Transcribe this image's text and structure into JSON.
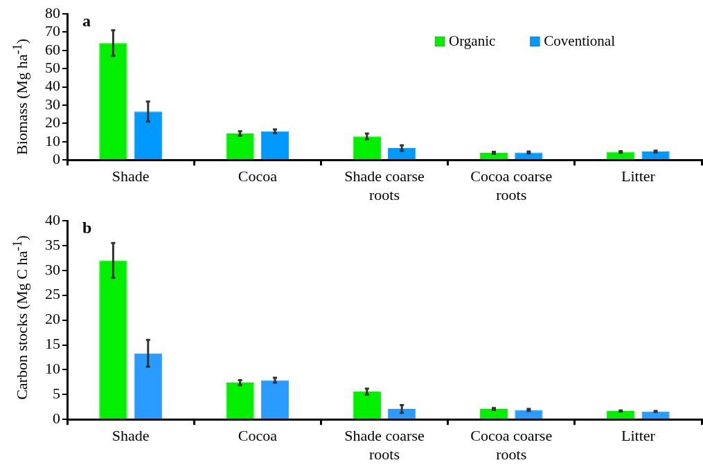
{
  "chart_data": [
    {
      "type": "bar",
      "title": "a",
      "ylabel": "Biomass (Mg ha$^{-1}$)",
      "categories": [
        "Shade",
        "Cocoa",
        "Shade coarse roots",
        "Cocoa coarse roots",
        "Litter"
      ],
      "series": [
        {
          "name": "Organic",
          "color": "#00f000",
          "values": [
            64,
            14.5,
            12.9,
            3.9,
            4.4
          ],
          "errors": [
            7,
            1.2,
            1.6,
            0.5,
            0.4
          ]
        },
        {
          "name": "Coventional",
          "color": "#0099ff",
          "values": [
            26.5,
            15.7,
            6.5,
            4.1,
            4.6
          ],
          "errors": [
            5.5,
            1,
            1.5,
            0.5,
            0.5
          ]
        }
      ],
      "ylim": [
        0,
        80
      ],
      "yticks": [
        0,
        10,
        20,
        30,
        40,
        50,
        60,
        70,
        80
      ],
      "grid": false,
      "legend": "top right"
    },
    {
      "type": "bar",
      "title": "b",
      "ylabel": "Carbon stocks (Mg C ha$^{-1}$)",
      "categories": [
        "Shade",
        "Cocoa",
        "Shade coarse roots",
        "Cocoa coarse roots",
        "Litter"
      ],
      "series": [
        {
          "color": "#00f000",
          "values": [
            32,
            7.4,
            5.6,
            2.1,
            1.7
          ],
          "errors": [
            3.5,
            0.5,
            0.6,
            0.2,
            0.1
          ]
        },
        {
          "color": "#2b9cff",
          "values": [
            13.3,
            7.9,
            2.1,
            1.9,
            1.6
          ],
          "errors": [
            2.7,
            0.5,
            0.8,
            0.2,
            0.1
          ]
        }
      ],
      "ylim": [
        0,
        40
      ],
      "yticks": [
        0,
        5,
        10,
        15,
        20,
        25,
        30,
        35,
        40
      ],
      "grid": false,
      "legend": false
    }
  ]
}
